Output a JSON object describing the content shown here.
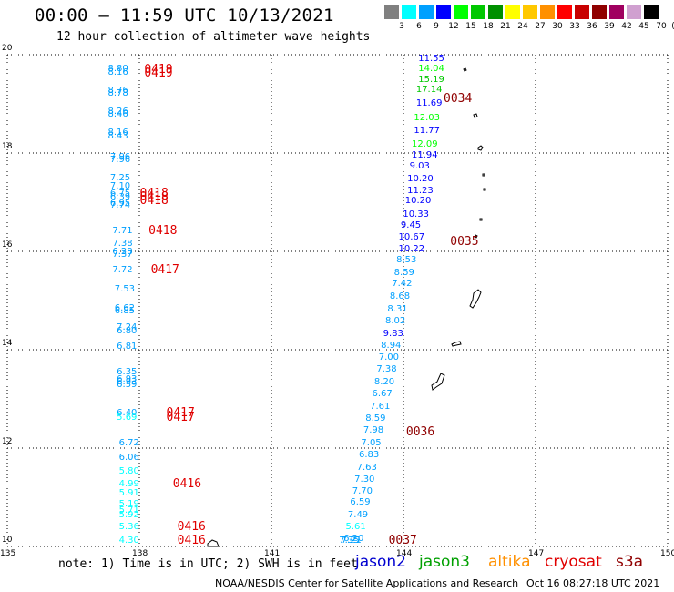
{
  "title": "00:00 – 11:59 UTC 10/13/2021",
  "subtitle": "12 hour collection of altimeter wave heights",
  "colorbar": {
    "unit": "(ft)",
    "colors": [
      "#808080",
      "#00ffff",
      "#00a0ff",
      "#0000ff",
      "#00ff00",
      "#00c800",
      "#009000",
      "#ffff00",
      "#ffc800",
      "#ff9000",
      "#ff0000",
      "#c80000",
      "#900000",
      "#a00060",
      "#d0a0d0",
      "#000000"
    ],
    "labels": [
      "3",
      "6",
      "9",
      "12",
      "15",
      "18",
      "21",
      "24",
      "27",
      "30",
      "33",
      "36",
      "39",
      "42",
      "45",
      "70"
    ]
  },
  "axes": {
    "x_ticks": [
      "135",
      "138",
      "141",
      "144",
      "147",
      "150"
    ],
    "y_ticks": [
      "10",
      "12",
      "14",
      "16",
      "18",
      "20"
    ]
  },
  "legend": {
    "note": "note: 1) Time is in UTC; 2) SWH is in feet",
    "satellites": [
      {
        "name": "jason2",
        "color": "#0000d0"
      },
      {
        "name": "jason3",
        "color": "#00a000"
      },
      {
        "name": "altika",
        "color": "#ff9000"
      },
      {
        "name": "cryosat",
        "color": "#e00000"
      },
      {
        "name": "s3a",
        "color": "#900000"
      }
    ]
  },
  "credit": "NOAA/NESDIS Center for Satellite Applications and Research",
  "timestamp": "Oct 16 08:27:18 UTC 2021",
  "tracks": [
    {
      "name": "track-west",
      "passes": [
        {
          "label": "0419",
          "lon": 138.4,
          "lat": 19.69
        },
        {
          "label": "0419",
          "lon": 138.4,
          "lat": 19.62
        },
        {
          "label": "0418",
          "lon": 138.3,
          "lat": 17.16
        },
        {
          "label": "0418",
          "lon": 138.3,
          "lat": 17.09
        },
        {
          "label": "0418",
          "lon": 138.3,
          "lat": 17.02
        },
        {
          "label": "0418",
          "lon": 138.5,
          "lat": 16.4
        },
        {
          "label": "0417",
          "lon": 138.55,
          "lat": 15.62
        },
        {
          "label": "0417",
          "lon": 138.9,
          "lat": 12.7
        },
        {
          "label": "0417",
          "lon": 138.9,
          "lat": 12.62
        },
        {
          "label": "0416",
          "lon": 139.05,
          "lat": 11.26
        },
        {
          "label": "0416",
          "lon": 139.15,
          "lat": 10.38
        },
        {
          "label": "0416",
          "lon": 139.15,
          "lat": 10.12
        }
      ],
      "points": [
        {
          "lon": 137.7,
          "lat": 19.7,
          "v": "8.80"
        },
        {
          "lon": 137.7,
          "lat": 19.63,
          "v": "8.16"
        },
        {
          "lon": 137.7,
          "lat": 19.26,
          "v": "8.76"
        },
        {
          "lon": 137.7,
          "lat": 19.21,
          "v": "8.78"
        },
        {
          "lon": 137.7,
          "lat": 18.84,
          "v": "8.26"
        },
        {
          "lon": 137.7,
          "lat": 18.77,
          "v": "8.46"
        },
        {
          "lon": 137.7,
          "lat": 18.4,
          "v": "8.16"
        },
        {
          "lon": 137.7,
          "lat": 18.33,
          "v": "8.43"
        },
        {
          "lon": 137.75,
          "lat": 17.91,
          "v": "7.96"
        },
        {
          "lon": 137.75,
          "lat": 17.85,
          "v": "7.96"
        },
        {
          "lon": 137.75,
          "lat": 17.49,
          "v": "7.25"
        },
        {
          "lon": 137.75,
          "lat": 17.32,
          "v": "7.10"
        },
        {
          "lon": 137.75,
          "lat": 17.16,
          "v": "6.75"
        },
        {
          "lon": 137.75,
          "lat": 17.09,
          "v": "6.39"
        },
        {
          "lon": 137.75,
          "lat": 16.96,
          "v": "6.95"
        },
        {
          "lon": 137.75,
          "lat": 16.93,
          "v": "7.74"
        },
        {
          "lon": 137.8,
          "lat": 16.4,
          "v": "7.71"
        },
        {
          "lon": 137.8,
          "lat": 16.14,
          "v": "7.38"
        },
        {
          "lon": 137.8,
          "lat": 15.98,
          "v": "6.28"
        },
        {
          "lon": 137.8,
          "lat": 15.93,
          "v": "7.37"
        },
        {
          "lon": 137.8,
          "lat": 15.62,
          "v": "7.72"
        },
        {
          "lon": 137.85,
          "lat": 15.23,
          "v": "7.53"
        },
        {
          "lon": 137.85,
          "lat": 14.84,
          "v": "6.62"
        },
        {
          "lon": 137.85,
          "lat": 14.78,
          "v": "6.85"
        },
        {
          "lon": 137.9,
          "lat": 14.44,
          "v": "7.24"
        },
        {
          "lon": 137.9,
          "lat": 14.37,
          "v": "6.80"
        },
        {
          "lon": 137.9,
          "lat": 14.06,
          "v": "6.81"
        },
        {
          "lon": 137.9,
          "lat": 13.53,
          "v": "6.35"
        },
        {
          "lon": 137.9,
          "lat": 13.38,
          "v": "6.93"
        },
        {
          "lon": 137.9,
          "lat": 13.33,
          "v": "6.93"
        },
        {
          "lon": 137.9,
          "lat": 13.27,
          "v": "6.59"
        },
        {
          "lon": 137.9,
          "lat": 12.7,
          "v": "6.40"
        },
        {
          "lon": 137.9,
          "lat": 12.62,
          "v": "5.69"
        },
        {
          "lon": 137.95,
          "lat": 12.1,
          "v": "6.72"
        },
        {
          "lon": 137.95,
          "lat": 11.8,
          "v": "6.06"
        },
        {
          "lon": 137.95,
          "lat": 11.51,
          "v": "5.80"
        },
        {
          "lon": 137.95,
          "lat": 11.26,
          "v": "4.99"
        },
        {
          "lon": 137.95,
          "lat": 11.07,
          "v": "5.91"
        },
        {
          "lon": 137.95,
          "lat": 10.85,
          "v": "5.19"
        },
        {
          "lon": 137.95,
          "lat": 10.73,
          "v": "5.71"
        },
        {
          "lon": 137.95,
          "lat": 10.63,
          "v": "5.92"
        },
        {
          "lon": 137.95,
          "lat": 10.38,
          "v": "5.36"
        },
        {
          "lon": 137.95,
          "lat": 10.12,
          "v": "4.30"
        }
      ]
    },
    {
      "name": "track-east",
      "passes": [
        {
          "label": "0034",
          "lon": 145.2,
          "lat": 19.09
        },
        {
          "label": "0035",
          "lon": 145.35,
          "lat": 16.18
        },
        {
          "label": "0036",
          "lon": 144.35,
          "lat": 12.31
        },
        {
          "label": "0037",
          "lon": 143.95,
          "lat": 10.12
        }
      ],
      "points": [
        {
          "lon": 144.75,
          "lat": 19.91,
          "v": "11.55"
        },
        {
          "lon": 144.75,
          "lat": 19.7,
          "v": "14.04"
        },
        {
          "lon": 144.75,
          "lat": 19.49,
          "v": "15.19"
        },
        {
          "lon": 144.7,
          "lat": 19.28,
          "v": "17.14"
        },
        {
          "lon": 144.7,
          "lat": 19.0,
          "v": "11.69"
        },
        {
          "lon": 144.65,
          "lat": 18.71,
          "v": "12.03"
        },
        {
          "lon": 144.65,
          "lat": 18.44,
          "v": "11.77"
        },
        {
          "lon": 144.6,
          "lat": 18.16,
          "v": "12.09"
        },
        {
          "lon": 144.6,
          "lat": 17.94,
          "v": "11.94"
        },
        {
          "lon": 144.55,
          "lat": 17.72,
          "v": "9.03"
        },
        {
          "lon": 144.5,
          "lat": 17.46,
          "v": "10.20"
        },
        {
          "lon": 144.5,
          "lat": 17.23,
          "v": "11.23"
        },
        {
          "lon": 144.45,
          "lat": 17.01,
          "v": "10.20"
        },
        {
          "lon": 144.4,
          "lat": 16.74,
          "v": "10.33"
        },
        {
          "lon": 144.35,
          "lat": 16.51,
          "v": "9.45"
        },
        {
          "lon": 144.3,
          "lat": 16.27,
          "v": "10.67"
        },
        {
          "lon": 144.3,
          "lat": 16.04,
          "v": "10.22"
        },
        {
          "lon": 144.25,
          "lat": 15.82,
          "v": "8.53"
        },
        {
          "lon": 144.2,
          "lat": 15.55,
          "v": "8.59"
        },
        {
          "lon": 144.15,
          "lat": 15.33,
          "v": "7.42"
        },
        {
          "lon": 144.1,
          "lat": 15.07,
          "v": "8.68"
        },
        {
          "lon": 144.05,
          "lat": 14.82,
          "v": "8.31"
        },
        {
          "lon": 144.0,
          "lat": 14.57,
          "v": "8.02"
        },
        {
          "lon": 143.95,
          "lat": 14.32,
          "v": "9.83"
        },
        {
          "lon": 143.9,
          "lat": 14.08,
          "v": "8.94"
        },
        {
          "lon": 143.85,
          "lat": 13.84,
          "v": "7.00"
        },
        {
          "lon": 143.8,
          "lat": 13.59,
          "v": "7.38"
        },
        {
          "lon": 143.75,
          "lat": 13.33,
          "v": "8.20"
        },
        {
          "lon": 143.7,
          "lat": 13.09,
          "v": "6.67"
        },
        {
          "lon": 143.65,
          "lat": 12.84,
          "v": "7.61"
        },
        {
          "lon": 143.55,
          "lat": 12.59,
          "v": "8.59"
        },
        {
          "lon": 143.5,
          "lat": 12.35,
          "v": "7.98"
        },
        {
          "lon": 143.45,
          "lat": 12.1,
          "v": "7.05"
        },
        {
          "lon": 143.4,
          "lat": 11.86,
          "v": "6.83"
        },
        {
          "lon": 143.35,
          "lat": 11.6,
          "v": "7.63"
        },
        {
          "lon": 143.3,
          "lat": 11.36,
          "v": "7.30"
        },
        {
          "lon": 143.25,
          "lat": 11.12,
          "v": "7.70"
        },
        {
          "lon": 143.2,
          "lat": 10.88,
          "v": "6.59"
        },
        {
          "lon": 143.15,
          "lat": 10.63,
          "v": "7.49"
        },
        {
          "lon": 143.1,
          "lat": 10.38,
          "v": "5.61"
        },
        {
          "lon": 143.05,
          "lat": 10.15,
          "v": "6.20"
        },
        {
          "lon": 143.0,
          "lat": 9.92,
          "v": "7.21"
        },
        {
          "lon": 142.95,
          "lat": 9.68,
          "v": "7.35"
        }
      ]
    }
  ]
}
